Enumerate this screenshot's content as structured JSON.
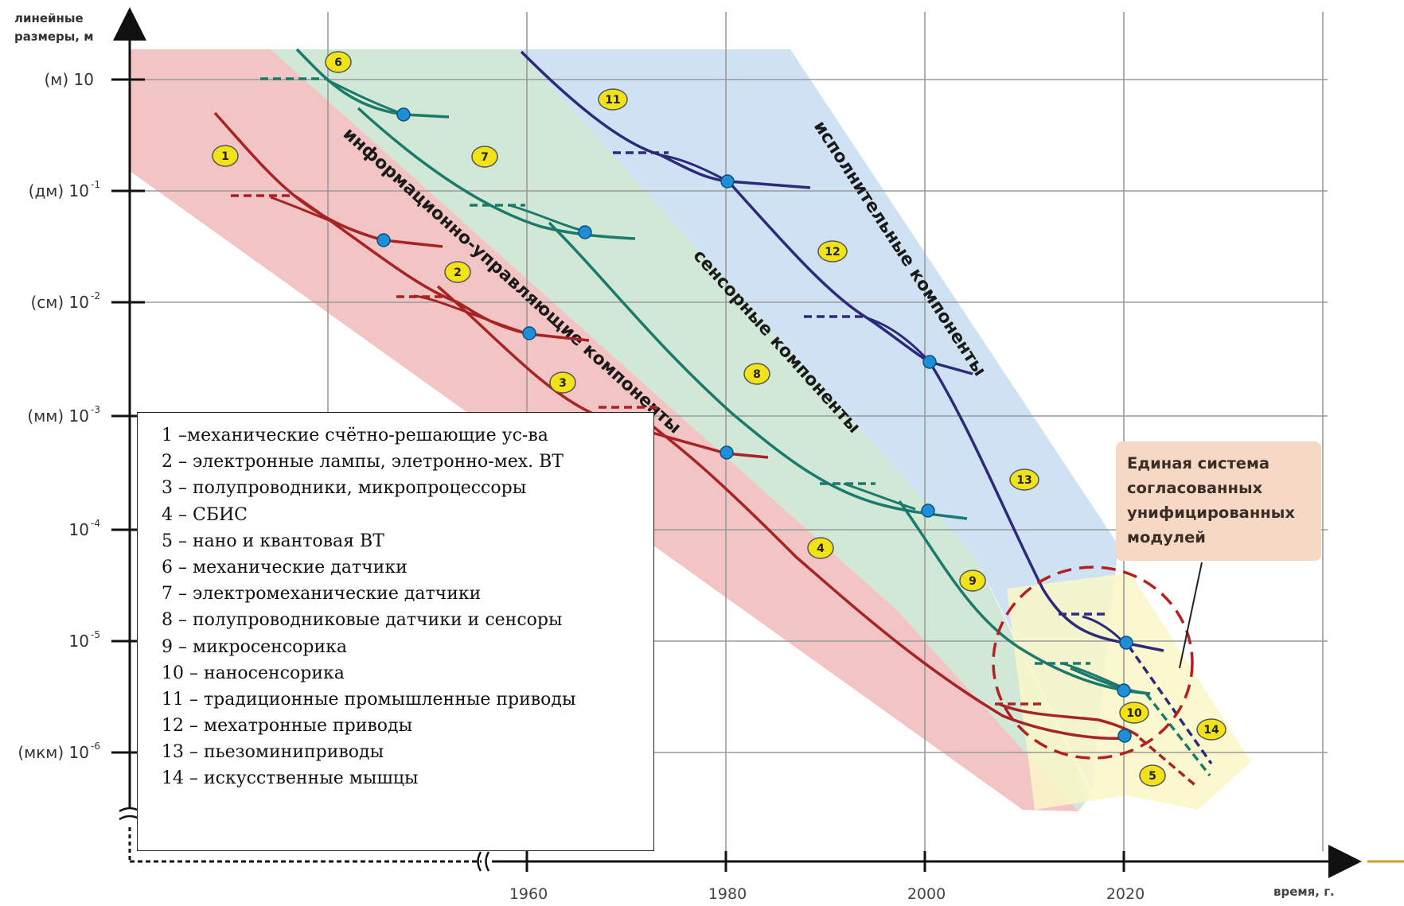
{
  "y_axis": {
    "title_lines": [
      "линейные",
      "размеры, м"
    ],
    "ticks": [
      {
        "prefix": "(м)",
        "base": "10",
        "exp": ""
      },
      {
        "prefix": "(дм)",
        "base": "10",
        "exp": "-1"
      },
      {
        "prefix": "(см)",
        "base": "10",
        "exp": "-2"
      },
      {
        "prefix": "(мм)",
        "base": "10",
        "exp": "-3"
      },
      {
        "prefix": "",
        "base": "10",
        "exp": "-4"
      },
      {
        "prefix": "",
        "base": "10",
        "exp": "-5"
      },
      {
        "prefix": "(мкм)",
        "base": "10",
        "exp": "-6"
      }
    ]
  },
  "x_axis": {
    "title": "время, г.",
    "ticks": [
      "1960",
      "1980",
      "2000",
      "2020"
    ]
  },
  "bands": [
    {
      "label": "информационно-управляющие компоненты",
      "color": "#f3c4c4"
    },
    {
      "label": "сенсорные компоненты",
      "color": "#d2e8d6"
    },
    {
      "label": "исполнительные компоненты",
      "color": "#cfe2f3"
    }
  ],
  "curve_colors": {
    "information": "#a82323",
    "sensor": "#1a7a6c",
    "actuator": "#2d2a7c",
    "highlight": "#faf7c8"
  },
  "markers": [
    "1",
    "2",
    "3",
    "4",
    "5",
    "6",
    "7",
    "8",
    "9",
    "10",
    "11",
    "12",
    "13",
    "14"
  ],
  "legend": [
    "1 –механические счётно-решающие ус-ва",
    "2 – электронные лампы, элетронно-мех. ВТ",
    "3 – полупроводники, микропроцессоры",
    "4 – СБИС",
    "5 – нано и квантовая ВТ",
    "6 – механические датчики",
    "7 – электромеханические датчики",
    "8 – полупроводниковые датчики и сенсоры",
    "9 – микросенсорика",
    "10 – наносенсорика",
    "11 – традиционные промышленные приводы",
    "12 – мехатронные приводы",
    "13 – пьезоминиприводы",
    "14 – искусственные мышцы"
  ],
  "note": {
    "lines": [
      "Единая система",
      "согласованных",
      "унифицированных",
      "модулей"
    ]
  }
}
